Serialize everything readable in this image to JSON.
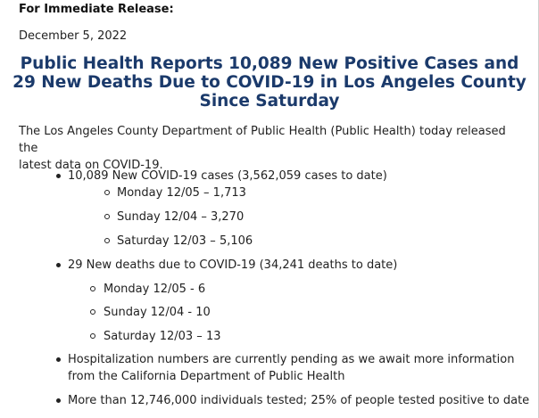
{
  "release_label": "For Immediate Release:",
  "date": "December 5, 2022",
  "headline": {
    "line1": "Public Health Reports 10,089 New Positive Cases and",
    "line2": "29 New Deaths Due to COVID-19 in Los Angeles County",
    "line3": "Since Saturday"
  },
  "intro": {
    "line1": "The Los Angeles County Department of Public Health (Public Health) today released the",
    "line2": "latest data on  COVID-19."
  },
  "cases": {
    "summary": "10,089 New COVID-19 cases (3,562,059 cases to date)",
    "items": [
      "Monday 12/05 – 1,713",
      "Sunday 12/04 – 3,270",
      "Saturday 12/03 – 5,106"
    ]
  },
  "deaths": {
    "summary": "29 New deaths due to COVID-19 (34,241 deaths to date)",
    "items": [
      "Monday 12/05 - 6",
      "Sunday 12/04 - 10",
      "Saturday 12/03 – 13"
    ]
  },
  "hospitalization": {
    "line1": "Hospitalization numbers are currently pending as we await more information",
    "line2": "from the California Department of Public Health"
  },
  "testing": "More than 12,746,000 individuals tested; 25% of people tested positive to date"
}
